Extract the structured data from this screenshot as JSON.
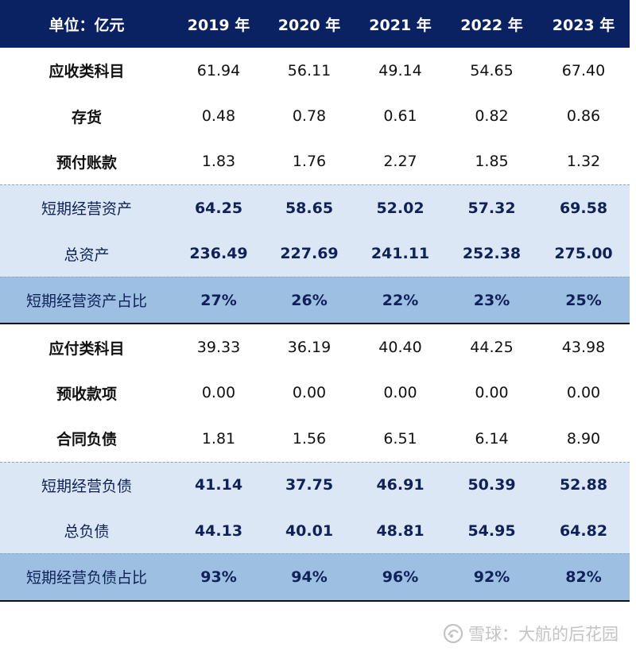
{
  "header": [
    "单位：亿元",
    "2019 年",
    "2020 年",
    "2021 年",
    "2022 年",
    "2023 年"
  ],
  "rows": [
    [
      "应收类科目",
      "61.94",
      "56.11",
      "49.14",
      "54.65",
      "67.40"
    ],
    [
      "存货",
      "0.48",
      "0.78",
      "0.61",
      "0.82",
      "0.86"
    ],
    [
      "预付账款",
      "1.83",
      "1.76",
      "2.27",
      "1.85",
      "1.32"
    ],
    [
      "短期经营资产",
      "64.25",
      "58.65",
      "52.02",
      "57.32",
      "69.58"
    ],
    [
      "总资产",
      "236.49",
      "227.69",
      "241.11",
      "252.38",
      "275.00"
    ],
    [
      "短期经营资产占比",
      "27%",
      "26%",
      "22%",
      "23%",
      "25%"
    ],
    [
      "应付类科目",
      "39.33",
      "36.19",
      "40.40",
      "44.25",
      "43.98"
    ],
    [
      "预收款项",
      "0.00",
      "0.00",
      "0.00",
      "0.00",
      "0.00"
    ],
    [
      "合同负债",
      "1.81",
      "1.56",
      "6.51",
      "6.14",
      "8.90"
    ],
    [
      "短期经营负债",
      "41.14",
      "37.75",
      "46.91",
      "50.39",
      "52.88"
    ],
    [
      "总负债",
      "44.13",
      "40.01",
      "48.81",
      "54.95",
      "64.82"
    ],
    [
      "短期经营负债占比",
      "93%",
      "94%",
      "96%",
      "92%",
      "82%"
    ]
  ],
  "watermark": {
    "text": "雪球：大航的后花园",
    "icon": "snowball-logo-icon"
  },
  "colors": {
    "header_bg": "#0b2262",
    "subtotal_bg": "#dbe7f4",
    "ratio_bg": "#9dbfe1",
    "emphasis_text": "#0f2158"
  }
}
